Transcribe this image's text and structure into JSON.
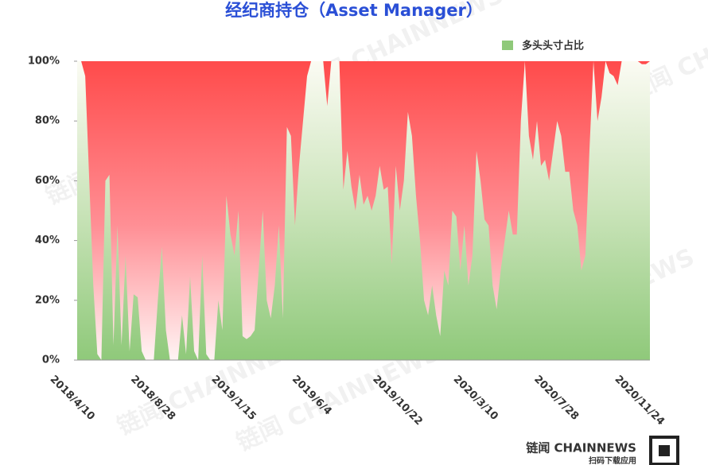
{
  "chart_data": {
    "type": "area",
    "title": "经纪商持仓（Asset Manager）",
    "categories": [
      "2018/4/10",
      null,
      null,
      null,
      null,
      null,
      null,
      null,
      null,
      null,
      null,
      null,
      null,
      null,
      null,
      null,
      null,
      null,
      null,
      null,
      "2018/8/28",
      null,
      null,
      null,
      null,
      null,
      null,
      null,
      null,
      null,
      null,
      null,
      null,
      null,
      null,
      null,
      null,
      null,
      null,
      null,
      "2019/1/15",
      null,
      null,
      null,
      null,
      null,
      null,
      null,
      null,
      null,
      null,
      null,
      null,
      null,
      null,
      null,
      null,
      null,
      null,
      null,
      "2019/6/4",
      null,
      null,
      null,
      null,
      null,
      null,
      null,
      null,
      null,
      null,
      null,
      null,
      null,
      null,
      null,
      null,
      null,
      null,
      null,
      "2019/10/22",
      null,
      null,
      null,
      null,
      null,
      null,
      null,
      null,
      null,
      null,
      null,
      null,
      null,
      null,
      null,
      null,
      null,
      null,
      null,
      "2020/3/10",
      null,
      null,
      null,
      null,
      null,
      null,
      null,
      null,
      null,
      null,
      null,
      null,
      null,
      null,
      null,
      null,
      null,
      null,
      null,
      "2020/7/28",
      null,
      null,
      null,
      null,
      null,
      null,
      null,
      null,
      null,
      null,
      null,
      null,
      null,
      null,
      null,
      null,
      null,
      null,
      null,
      "2020/11/24",
      null,
      null
    ],
    "series": [
      {
        "name": "多头头寸占比",
        "color": "#8fc97a",
        "values": [
          100,
          100,
          95,
          60,
          25,
          2,
          0,
          60,
          62,
          5,
          45,
          5,
          35,
          3,
          22,
          21,
          3,
          0,
          0,
          0,
          20,
          38,
          10,
          0,
          0,
          0,
          15,
          2,
          28,
          3,
          0,
          35,
          2,
          0,
          0,
          20,
          10,
          55,
          42,
          35,
          50,
          8,
          7,
          8,
          10,
          30,
          50,
          20,
          14,
          25,
          45,
          14,
          78,
          75,
          45,
          65,
          80,
          95,
          100,
          100,
          100,
          100,
          85,
          100,
          100,
          100,
          57,
          70,
          58,
          50,
          62,
          52,
          55,
          50,
          55,
          65,
          57,
          58,
          32,
          65,
          50,
          60,
          83,
          75,
          55,
          40,
          20,
          15,
          25,
          15,
          8,
          30,
          25,
          50,
          48,
          30,
          45,
          25,
          35,
          70,
          60,
          47,
          45,
          25,
          17,
          30,
          40,
          50,
          42,
          42,
          80,
          100,
          75,
          67,
          80,
          65,
          67,
          60,
          70,
          80,
          75,
          63,
          63,
          50,
          45,
          30,
          35,
          70,
          100,
          80,
          88,
          100,
          96,
          95,
          92,
          100,
          100,
          100,
          100,
          100,
          99,
          99,
          100
        ]
      }
    ],
    "background_color": "#ff4b4b",
    "ylim": [
      0,
      100
    ],
    "yticks": [
      {
        "value": 0,
        "label": "0%"
      },
      {
        "value": 20,
        "label": "20%"
      },
      {
        "value": 40,
        "label": "40%"
      },
      {
        "value": 60,
        "label": "60%"
      },
      {
        "value": 80,
        "label": "80%"
      },
      {
        "value": 100,
        "label": "100%"
      }
    ],
    "legend": "top-right",
    "watermark": "链闻 CHAINNEWS",
    "logo": "链闻 CHAINNEWS",
    "logo_caption": "扫码下载应用"
  }
}
